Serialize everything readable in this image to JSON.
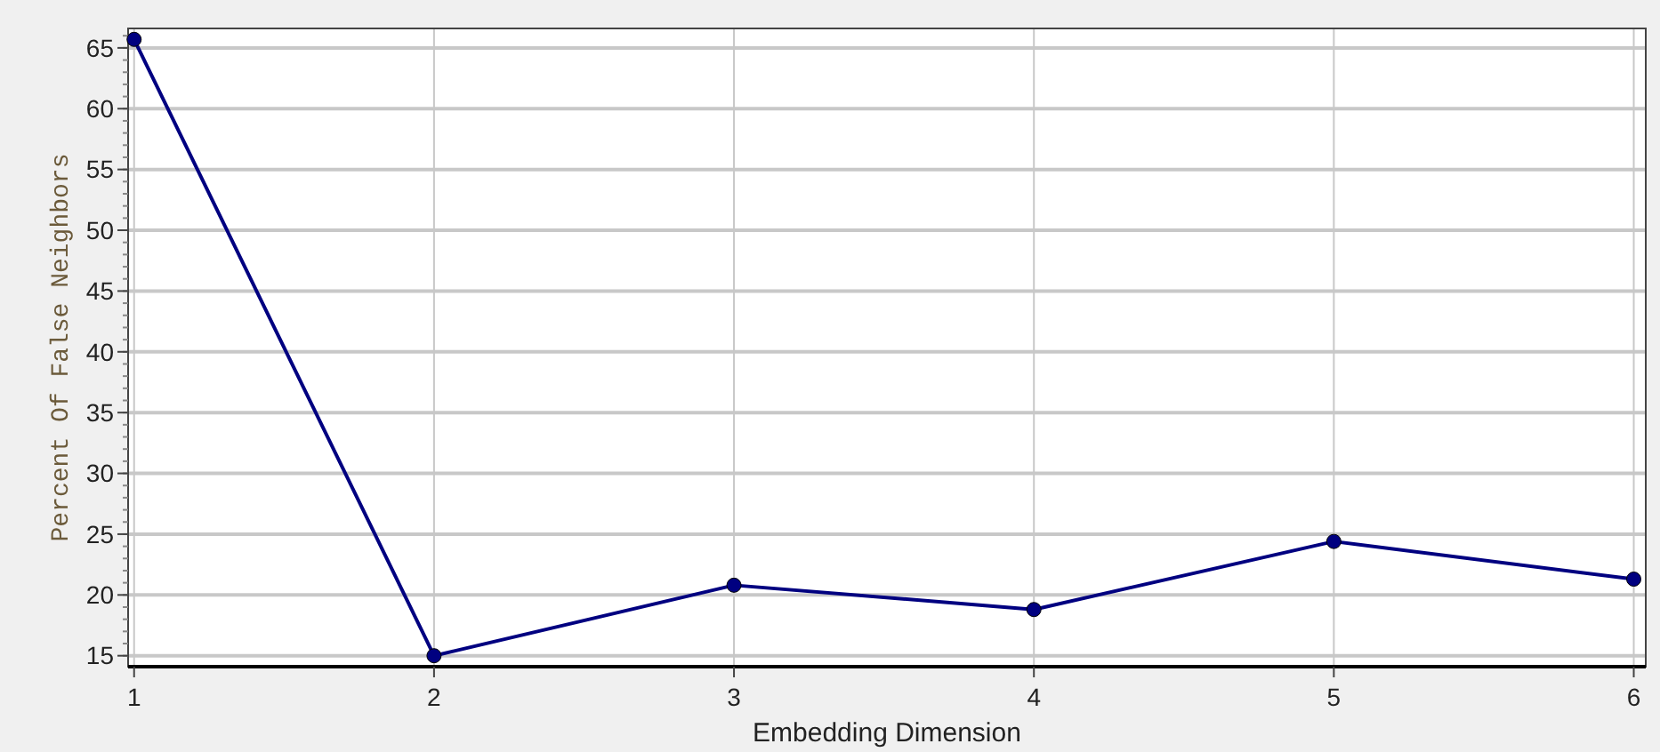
{
  "chart_data": {
    "type": "line",
    "xlabel": "Embedding Dimension",
    "ylabel": "Percent Of False Neighbors",
    "x": [
      1,
      2,
      3,
      4,
      5,
      6
    ],
    "series": [
      {
        "color": "#000080",
        "values": [
          65.7,
          15,
          20.8,
          18.8,
          24.4,
          21.3
        ]
      }
    ],
    "xlim": [
      0.98,
      6.04
    ],
    "xticks": [
      1,
      2,
      3,
      4,
      5,
      6
    ],
    "ylim": [
      14.1,
      66.6
    ],
    "yticks": [
      15,
      20,
      25,
      30,
      35,
      40,
      45,
      50,
      55,
      60,
      65
    ],
    "grid": true,
    "marker": "circle",
    "line_style": "solid"
  }
}
